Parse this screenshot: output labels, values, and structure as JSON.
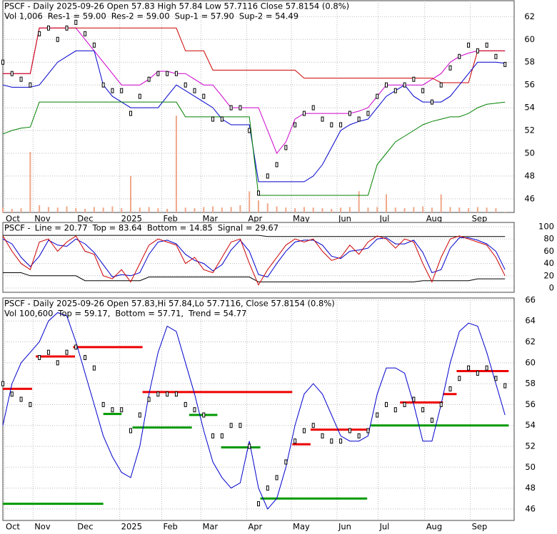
{
  "chart_data": [
    {
      "type": "line",
      "title": "PSCF - Daily 2025-09-26 Open 57.83  High 57.84  Low 57.7116  Close 57.8154 (0.8%)",
      "legend": [
        {
          "text": "Vol 1,006",
          "color": "#000000"
        },
        {
          "text": "Res-1 = 59.00",
          "color": "#cc00cc"
        },
        {
          "text": "Res-2 = 59.00",
          "color": "#cc0000"
        },
        {
          "text": "Sup-1 = 57.90",
          "color": "#0000cc"
        },
        {
          "text": "Sup-2 = 54.49",
          "color": "#008000"
        }
      ],
      "x": [
        0,
        1,
        2,
        3,
        4,
        5,
        6,
        7,
        8,
        9,
        10,
        11,
        12,
        13,
        14,
        15,
        16,
        17,
        18,
        19,
        20,
        21,
        22,
        23,
        24,
        25,
        26,
        27,
        28,
        29,
        30,
        31,
        32,
        33,
        34,
        35,
        36,
        37,
        38,
        39,
        40,
        41,
        42,
        43,
        44,
        45,
        46,
        47,
        48,
        49,
        50,
        51,
        52,
        53,
        54,
        55
      ],
      "xlim": [
        0,
        56
      ],
      "xticks": [
        {
          "value": 0.16,
          "label": "Oct"
        },
        {
          "value": 3.3,
          "label": "Nov"
        },
        {
          "value": 8.0,
          "label": "Dec"
        },
        {
          "value": 12.8,
          "label": "2025"
        },
        {
          "value": 17.4,
          "label": "Feb"
        },
        {
          "value": 21.7,
          "label": "Mar"
        },
        {
          "value": 26.7,
          "label": "Apr"
        },
        {
          "value": 31.6,
          "label": "May"
        },
        {
          "value": 36.6,
          "label": "Jun"
        },
        {
          "value": 41.1,
          "label": "Jul"
        },
        {
          "value": 46.2,
          "label": "Aug"
        },
        {
          "value": 51.2,
          "label": "Sep"
        }
      ],
      "ylim": [
        44.8,
        63.4
      ],
      "yticks": [
        46,
        48,
        50,
        52,
        54,
        56,
        58,
        60,
        62
      ],
      "grid": true,
      "values": [
        58,
        57,
        56.5,
        56,
        60.5,
        61,
        60,
        61,
        61.5,
        60.5,
        59.5,
        56,
        55.5,
        55.5,
        53.5,
        55,
        56.5,
        57,
        57,
        57,
        56,
        55.5,
        55,
        53,
        53,
        54,
        54,
        52,
        46.5,
        48,
        49,
        50.5,
        52.5,
        53.5,
        54,
        53,
        52.5,
        52.5,
        53.5,
        53,
        53.5,
        55,
        56,
        55.5,
        56,
        56.5,
        55.5,
        54.5,
        56,
        57.5,
        58.5,
        59.5,
        59,
        59.5,
        58.5,
        57.8
      ],
      "color": "#000000",
      "volume": [
        8000,
        6000,
        7000,
        100000,
        12000,
        9000,
        8000,
        10000,
        7000,
        6000,
        9000,
        8000,
        10000,
        7000,
        60000,
        8000,
        9000,
        7000,
        6000,
        160000,
        8000,
        7000,
        9000,
        10000,
        8000,
        9000,
        12000,
        35000,
        20000,
        15000,
        10000,
        8000,
        7000,
        9000,
        8000,
        7000,
        6000,
        8000,
        9000,
        35000,
        8000,
        9000,
        30000,
        8000,
        7000,
        9000,
        10000,
        8000,
        30000,
        9000,
        8000,
        7000,
        9000,
        8000,
        7000,
        1006
      ],
      "volume_lim": [
        0,
        350000
      ],
      "volume_color": "#f0a88a",
      "series": [
        {
          "color": "#cc00cc",
          "values": [
            57,
            57,
            57,
            57,
            61,
            61,
            61,
            61,
            61,
            60,
            59,
            58,
            57,
            56,
            56,
            56,
            56.5,
            57.2,
            57.2,
            57,
            57,
            56.5,
            56,
            56,
            55,
            54,
            54,
            54,
            54,
            52,
            50,
            51,
            53,
            53.5,
            53.5,
            53.5,
            53.5,
            53.5,
            53.5,
            53.7,
            54,
            55,
            56,
            56,
            56,
            56,
            56,
            56.5,
            57,
            58,
            58.5,
            58.8,
            59,
            59,
            59,
            59
          ]
        },
        {
          "color": "#cc0000",
          "values": [
            57,
            57,
            57,
            57,
            61,
            61,
            61,
            61,
            61,
            61,
            61,
            61,
            61,
            61,
            61,
            61,
            61,
            61,
            61,
            61,
            59,
            59,
            59,
            57.3,
            57.3,
            57.3,
            57.3,
            57.3,
            57.3,
            57.3,
            57.3,
            57.3,
            57.3,
            56.6,
            56.6,
            56.6,
            56.6,
            56.6,
            56.6,
            56.6,
            56.6,
            56.6,
            56.6,
            56.6,
            56.6,
            56.6,
            56.6,
            56.6,
            56.2,
            56.2,
            56.2,
            56.2,
            59,
            59,
            59,
            59
          ]
        },
        {
          "color": "#0000cc",
          "values": [
            56,
            55.8,
            55.8,
            55.8,
            56,
            57,
            58,
            58.5,
            59,
            59,
            59,
            56,
            55,
            54.5,
            54,
            54,
            54,
            54,
            55,
            56,
            55.5,
            55,
            54.5,
            54,
            53,
            52.5,
            52.5,
            52.5,
            47.5,
            47.5,
            47.5,
            47.5,
            47.5,
            47.5,
            48,
            49,
            50.5,
            52,
            52.5,
            52.8,
            53,
            54,
            55,
            55.5,
            56,
            55,
            54.5,
            54.5,
            54.5,
            55,
            56,
            57,
            58,
            58,
            58,
            57.9
          ]
        },
        {
          "color": "#008000",
          "values": [
            51.7,
            52,
            52.2,
            52.3,
            54.5,
            54.5,
            54.5,
            54.5,
            54.5,
            54.5,
            54.5,
            54.5,
            54.5,
            54.5,
            54.5,
            54.5,
            54.5,
            54.5,
            54.5,
            54.5,
            53.2,
            53.2,
            53.2,
            53.2,
            53.2,
            53.2,
            53.2,
            53.2,
            46.3,
            46.3,
            46.3,
            46.3,
            46.3,
            46.3,
            46.3,
            46.3,
            46.3,
            46.3,
            46.3,
            46.3,
            46.3,
            49,
            50,
            51,
            51.5,
            52,
            52.5,
            52.8,
            53,
            53.2,
            53.2,
            53.5,
            54,
            54.3,
            54.4,
            54.49
          ]
        }
      ]
    },
    {
      "type": "line",
      "title": "PSCF -",
      "legend": [
        {
          "text": "Line = 20.77",
          "color": "#cc0000"
        },
        {
          "text": "Top = 83.64",
          "color": "#000000"
        },
        {
          "text": "Bottom = 14.85",
          "color": "#000000"
        },
        {
          "text": "Signal = 29.67",
          "color": "#0000cc"
        }
      ],
      "x": [
        0,
        1,
        2,
        3,
        4,
        5,
        6,
        7,
        8,
        9,
        10,
        11,
        12,
        13,
        14,
        15,
        16,
        17,
        18,
        19,
        20,
        21,
        22,
        23,
        24,
        25,
        26,
        27,
        28,
        29,
        30,
        31,
        32,
        33,
        34,
        35,
        36,
        37,
        38,
        39,
        40,
        41,
        42,
        43,
        44,
        45,
        46,
        47,
        48,
        49,
        50,
        51,
        52,
        53,
        54,
        55
      ],
      "xlim": [
        0,
        56
      ],
      "ylim": [
        -7,
        107
      ],
      "yticks": [
        0,
        20,
        40,
        60,
        80,
        100
      ],
      "grid": true,
      "series": [
        {
          "color": "#000000",
          "values": [
            86,
            86,
            86,
            86,
            86,
            86,
            86,
            86,
            86,
            86,
            86,
            86,
            86,
            86,
            86,
            86,
            86,
            86,
            86,
            86,
            86,
            86,
            86,
            86,
            86,
            86,
            86,
            86,
            86,
            84,
            84,
            84,
            84,
            84,
            84,
            84,
            84,
            84,
            84,
            84,
            84,
            84,
            84,
            84,
            84,
            84,
            84,
            84,
            84,
            84,
            84,
            84,
            84,
            84,
            84,
            84
          ]
        },
        {
          "color": "#000000",
          "values": [
            25,
            25,
            25,
            20,
            20,
            20,
            20,
            20,
            20,
            12,
            12,
            12,
            12,
            12,
            12,
            12,
            18,
            18,
            18,
            18,
            18,
            18,
            18,
            18,
            18,
            18,
            18,
            18,
            10,
            10,
            10,
            10,
            10,
            10,
            10,
            10,
            10,
            10,
            10,
            10,
            10,
            10,
            10,
            10,
            10,
            10,
            12,
            12,
            12,
            12,
            12,
            12,
            15,
            15,
            15,
            15
          ]
        },
        {
          "color": "#0000cc",
          "values": [
            80,
            72,
            50,
            35,
            52,
            78,
            70,
            68,
            80,
            72,
            58,
            38,
            18,
            22,
            20,
            25,
            55,
            75,
            78,
            72,
            55,
            45,
            40,
            28,
            38,
            62,
            78,
            60,
            22,
            18,
            40,
            60,
            75,
            78,
            78,
            70,
            52,
            48,
            60,
            62,
            65,
            80,
            82,
            72,
            72,
            78,
            58,
            25,
            30,
            65,
            82,
            82,
            78,
            72,
            60,
            30
          ]
        },
        {
          "color": "#cc0000",
          "values": [
            85,
            60,
            40,
            30,
            75,
            80,
            60,
            75,
            85,
            60,
            55,
            20,
            15,
            30,
            10,
            40,
            70,
            80,
            75,
            70,
            40,
            50,
            30,
            25,
            50,
            75,
            80,
            40,
            5,
            30,
            50,
            70,
            80,
            75,
            80,
            60,
            45,
            50,
            70,
            55,
            75,
            85,
            80,
            65,
            80,
            75,
            40,
            10,
            50,
            80,
            85,
            80,
            75,
            70,
            50,
            20
          ]
        }
      ]
    },
    {
      "type": "line",
      "title": "PSCF - Daily 2025-09-26 Open 57.83,Hi 57.84,Lo 57.7116, Close 57.8154 (0.8%)",
      "legend": [
        {
          "text": "Vol 100,600",
          "color": "#000000"
        },
        {
          "text": "Top = 59.17,",
          "color": "#cc0000"
        },
        {
          "text": "Bottom = 57.71,",
          "color": "#008000"
        },
        {
          "text": "Trend = 54.77",
          "color": "#0000cc"
        }
      ],
      "x": [
        0,
        1,
        2,
        3,
        4,
        5,
        6,
        7,
        8,
        9,
        10,
        11,
        12,
        13,
        14,
        15,
        16,
        17,
        18,
        19,
        20,
        21,
        22,
        23,
        24,
        25,
        26,
        27,
        28,
        29,
        30,
        31,
        32,
        33,
        34,
        35,
        36,
        37,
        38,
        39,
        40,
        41,
        42,
        43,
        44,
        45,
        46,
        47,
        48,
        49,
        50,
        51,
        52,
        53,
        54,
        55
      ],
      "xlim": [
        0,
        56
      ],
      "xticks": [
        {
          "value": 0.16,
          "label": "Oct"
        },
        {
          "value": 3.3,
          "label": "Nov"
        },
        {
          "value": 8.0,
          "label": "Dec"
        },
        {
          "value": 12.8,
          "label": "2025"
        },
        {
          "value": 17.4,
          "label": "Feb"
        },
        {
          "value": 21.7,
          "label": "Mar"
        },
        {
          "value": 26.7,
          "label": "Apr"
        },
        {
          "value": 31.6,
          "label": "May"
        },
        {
          "value": 36.6,
          "label": "Jun"
        },
        {
          "value": 41.1,
          "label": "Jul"
        },
        {
          "value": 46.2,
          "label": "Aug"
        },
        {
          "value": 51.2,
          "label": "Sep"
        }
      ],
      "ylim": [
        44.9,
        66.2
      ],
      "yticks": [
        46,
        48,
        50,
        52,
        54,
        56,
        58,
        60,
        62,
        64,
        66
      ],
      "grid": true,
      "values": [
        58,
        57,
        56.5,
        56,
        60.5,
        61,
        60,
        61,
        61.5,
        60.5,
        59.5,
        56,
        55.5,
        55.5,
        53.5,
        55,
        56.5,
        57,
        57,
        57,
        56,
        55.5,
        55,
        53,
        53,
        54,
        54,
        52,
        46.5,
        48,
        49,
        50.5,
        52.5,
        53.5,
        54,
        53,
        52.5,
        52.5,
        53.5,
        53,
        53.5,
        55,
        56,
        55.5,
        56,
        56.5,
        55.5,
        54.5,
        56,
        57.5,
        58.5,
        59.5,
        59,
        59.5,
        58.5,
        57.8
      ],
      "color": "#000000",
      "series": [
        {
          "color": "#0000cc",
          "values": [
            54,
            58,
            60,
            61,
            62,
            64,
            64.8,
            64.5,
            62,
            59,
            56,
            53,
            51,
            49.5,
            49,
            52,
            57,
            61,
            63.5,
            63,
            60,
            57,
            53.5,
            50.5,
            49,
            48,
            48.5,
            52.5,
            48,
            46,
            47,
            50,
            54,
            57,
            58,
            57,
            55,
            53,
            52.5,
            52.5,
            53,
            57,
            59.5,
            59.5,
            59,
            56,
            52.5,
            52.5,
            56,
            60,
            63,
            63.8,
            63.5,
            61,
            58,
            55
          ]
        }
      ],
      "levels": [
        {
          "start": 0,
          "end": 3.2,
          "value": 57.5,
          "color": "#ee0000"
        },
        {
          "start": 3.6,
          "end": 7.9,
          "value": 60.6,
          "color": "#ee0000"
        },
        {
          "start": 7.7,
          "end": 15.3,
          "value": 61.5,
          "color": "#ee0000"
        },
        {
          "start": 0,
          "end": 11,
          "value": 46.5,
          "color": "#009900"
        },
        {
          "start": 11,
          "end": 13,
          "value": 55.1,
          "color": "#009900"
        },
        {
          "start": 14.2,
          "end": 20.7,
          "value": 53.8,
          "color": "#009900"
        },
        {
          "start": 15.3,
          "end": 31.7,
          "value": 57.2,
          "color": "#ee0000"
        },
        {
          "start": 20.4,
          "end": 23.5,
          "value": 55,
          "color": "#009900"
        },
        {
          "start": 23.9,
          "end": 28.2,
          "value": 51.9,
          "color": "#009900"
        },
        {
          "start": 28.2,
          "end": 39.9,
          "value": 47,
          "color": "#009900"
        },
        {
          "start": 31.7,
          "end": 33.7,
          "value": 52.2,
          "color": "#ee0000"
        },
        {
          "start": 33.7,
          "end": 40.2,
          "value": 53.6,
          "color": "#ee0000"
        },
        {
          "start": 40.3,
          "end": 55.4,
          "value": 54,
          "color": "#009900"
        },
        {
          "start": 43.5,
          "end": 48.2,
          "value": 56.2,
          "color": "#ee0000"
        },
        {
          "start": 48.2,
          "end": 49.7,
          "value": 57,
          "color": "#ee0000"
        },
        {
          "start": 49.7,
          "end": 55.4,
          "value": 59.2,
          "color": "#ee0000"
        }
      ]
    }
  ]
}
